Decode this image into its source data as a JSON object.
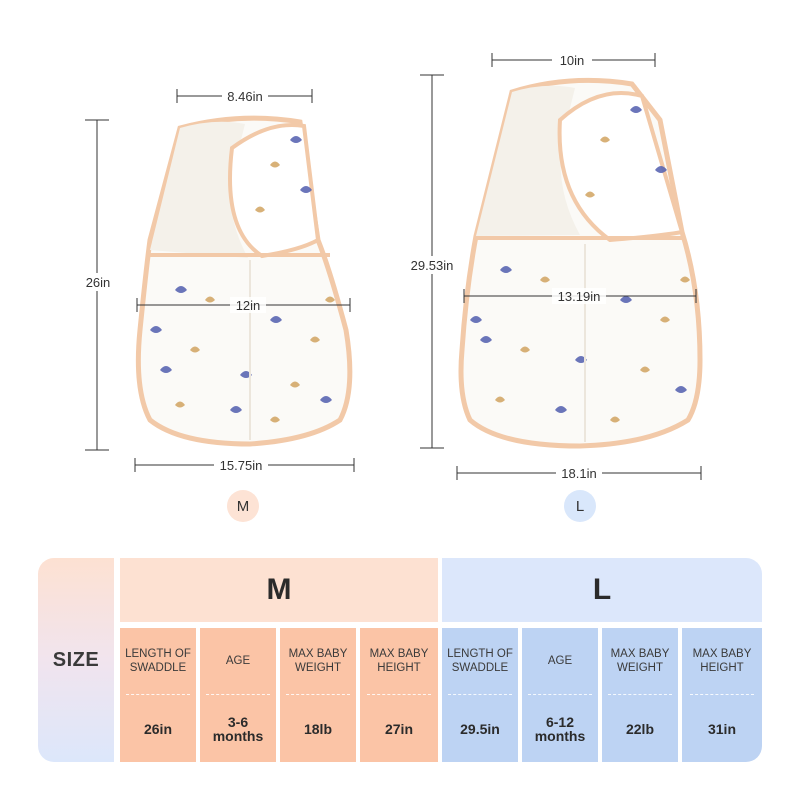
{
  "dimensions": {
    "m": {
      "top_width": "8.46in",
      "mid_width": "12in",
      "bottom_width": "15.75in",
      "length": "26in"
    },
    "l": {
      "top_width": "10in",
      "mid_width": "13.19in",
      "bottom_width": "18.1in",
      "length": "29.53in"
    }
  },
  "badges": {
    "m": "M",
    "l": "L"
  },
  "table": {
    "size_label": "SIZE",
    "m_header": "M",
    "l_header": "L",
    "columns": [
      {
        "label": "LENGTH OF\nSWADDLE",
        "value": "26in"
      },
      {
        "label": "AGE",
        "value": "3-6\nmonths"
      },
      {
        "label": "MAX BABY\nWEIGHT",
        "value": "18lb"
      },
      {
        "label": "MAX BABY\nHEIGHT",
        "value": "27in"
      },
      {
        "label": "LENGTH OF\nSWADDLE",
        "value": "29.5in"
      },
      {
        "label": "AGE",
        "value": "6-12\nmonths"
      },
      {
        "label": "MAX BABY\nWEIGHT",
        "value": "22lb"
      },
      {
        "label": "MAX BABY\nHEIGHT",
        "value": "31in"
      }
    ]
  },
  "colors": {
    "m_light": "#fde1d2",
    "m_dark": "#fbc4a6",
    "l_light": "#dce7fb",
    "l_dark": "#bdd3f3",
    "trim": "#f2c9a8"
  },
  "icons": [
    "swaddle-m-illustration",
    "swaddle-l-illustration"
  ]
}
